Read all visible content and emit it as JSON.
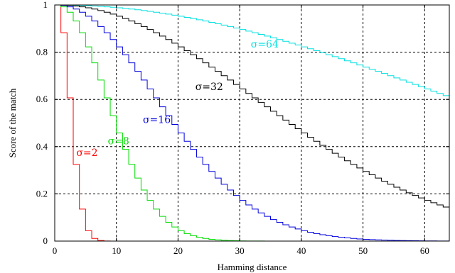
{
  "chart_data": {
    "type": "line",
    "xlabel": "Hamming distance",
    "ylabel": "Score of the match",
    "xlim": [
      0,
      64
    ],
    "ylim": [
      0,
      1
    ],
    "x_ticks": [
      0,
      10,
      20,
      30,
      40,
      50,
      60
    ],
    "y_ticks": [
      0,
      0.2,
      0.4,
      0.6,
      0.8,
      1
    ],
    "y_tick_labels": [
      "0",
      "0.2",
      "0.4",
      "0.6",
      "0.8",
      "1"
    ],
    "grid": true,
    "step": true,
    "series": [
      {
        "name": "σ=2",
        "sigma": 2,
        "color": "#ff0000"
      },
      {
        "name": "σ=8",
        "sigma": 8,
        "color": "#00dd00"
      },
      {
        "name": "σ=16",
        "sigma": 16,
        "color": "#0000dd"
      },
      {
        "name": "σ=32",
        "sigma": 32,
        "color": "#000000"
      },
      {
        "name": "σ=64",
        "sigma": 64,
        "color": "#00e0e0"
      }
    ],
    "series_label_anchors": [
      {
        "x": 3.5,
        "y": 0.36
      },
      {
        "x": 8.6,
        "y": 0.41
      },
      {
        "x": 14.3,
        "y": 0.5
      },
      {
        "x": 22.8,
        "y": 0.64
      },
      {
        "x": 31.8,
        "y": 0.82
      }
    ]
  }
}
